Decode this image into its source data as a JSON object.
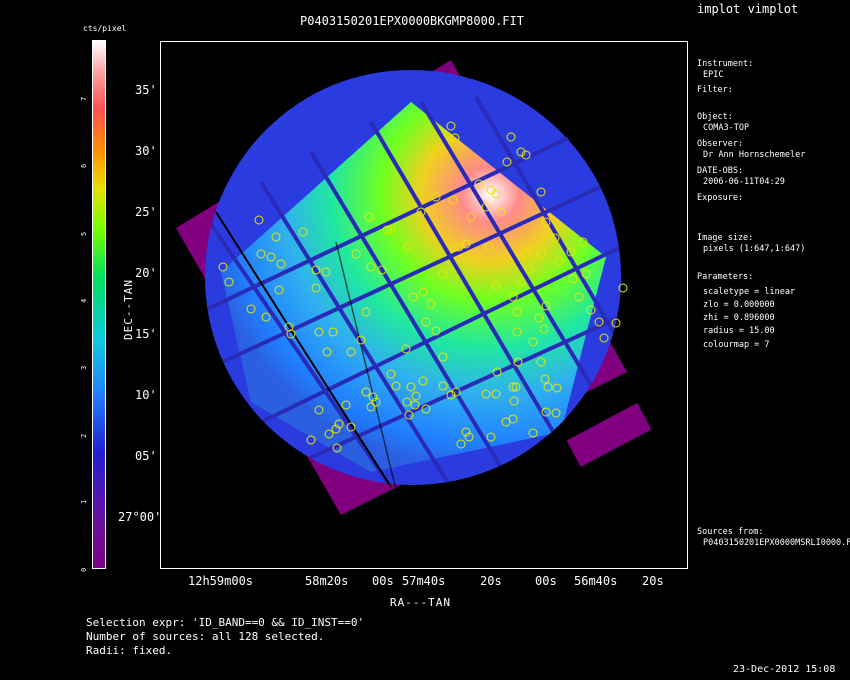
{
  "app_title": "implot vimplot",
  "plot_title": "P0403150201EPX0000BKGMP8000.FIT",
  "colorbar": {
    "label": "cts/pixel",
    "ticks": [
      "0",
      "1",
      "2",
      "3",
      "4",
      "5",
      "6",
      "7"
    ]
  },
  "axes": {
    "xlabel": "RA---TAN",
    "ylabel": "DEC--TAN",
    "y_ticks": [
      "35'",
      "30'",
      "25'",
      "20'",
      "15'",
      "10'",
      "05'",
      "27°00'"
    ],
    "x_ticks": [
      "12h59m00s",
      "58m20s",
      "00s",
      "57m40s",
      "20s",
      "00s",
      "56m40s",
      "20s"
    ]
  },
  "info_panel": {
    "instrument_label": "Instrument:",
    "instrument": "EPIC",
    "filter_label": "Filter:",
    "object_label": "Object:",
    "object": "COMA3-TOP",
    "observer_label": "Observer:",
    "observer": "Dr Ann Hornschemeler",
    "date_label": "DATE-OBS:",
    "date": "2006-06-11T04:29",
    "exposure_label": "Exposure:",
    "image_size_label": "Image size:",
    "image_size": "pixels (1:647,1:647)",
    "parameters_label": "Parameters:",
    "params": [
      "scaletype = linear",
      "zlo = 0.000000",
      "zhi = 0.896000",
      "radius = 15.00",
      "colourmap = 7"
    ],
    "sources_label": "Sources from:",
    "sources_file": "P0403150201EPX0000MSRLI0000.F"
  },
  "selection": {
    "expr": "Selection expr: 'ID_BAND==0 && ID_INST==0'",
    "count": "Number of sources: all 128 selected.",
    "radii": "Radii: fixed."
  },
  "timestamp": "23-Dec-2012 15:08",
  "sources_color": "#e8e800"
}
